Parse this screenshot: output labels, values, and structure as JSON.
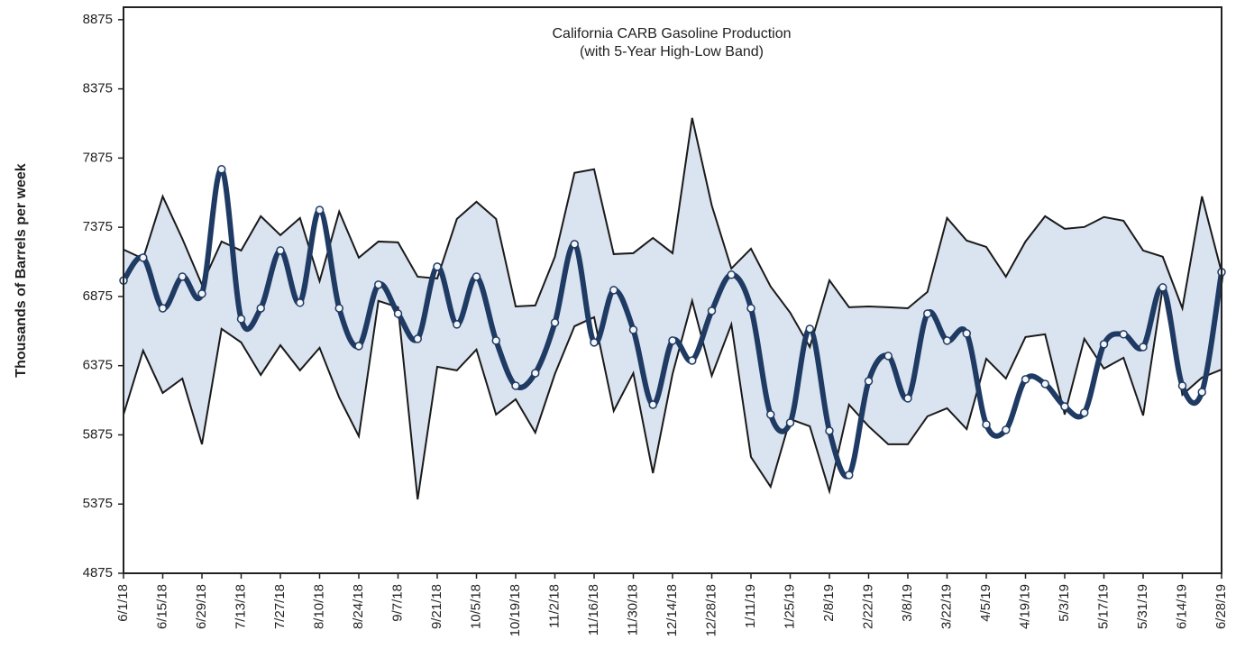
{
  "chart_data": {
    "type": "line",
    "title": "California CARB Gasoline Production",
    "subtitle": "(with 5-Year High-Low Band)",
    "y_label": "Thousands of Barrels per week",
    "categories": [
      "6/1/18",
      null,
      "6/15/18",
      null,
      "6/29/18",
      null,
      "7/13/18",
      null,
      "7/27/18",
      null,
      "8/10/18",
      null,
      "8/24/18",
      null,
      "9/7/18",
      null,
      "9/21/18",
      null,
      "10/5/18",
      null,
      "10/19/18",
      null,
      "11/2/18",
      null,
      "11/16/18",
      null,
      "11/30/18",
      null,
      "12/14/18",
      null,
      "12/28/18",
      null,
      "1/11/19",
      null,
      "1/25/19",
      null,
      "2/8/19",
      null,
      "2/22/19",
      null,
      "3/8/19",
      null,
      "3/22/19",
      null,
      "4/5/19",
      null,
      "4/19/19",
      null,
      "5/3/19",
      null,
      "5/17/19",
      null,
      "5/31/19",
      null,
      "6/14/19",
      null,
      "6/28/19"
    ],
    "series": [
      {
        "color": "#1f3b63",
        "values": [
          6990,
          7155,
          6790,
          7018,
          6895,
          7794,
          6712,
          6790,
          7207,
          6830,
          7500,
          6790,
          6517,
          6960,
          6751,
          6569,
          7090,
          6673,
          7018,
          6556,
          6230,
          6321,
          6686,
          7253,
          6543,
          6921,
          6634,
          6093,
          6556,
          6412,
          6771,
          7032,
          6790,
          6022,
          5963,
          6641,
          5904,
          5585,
          6263,
          6445,
          6139,
          6751,
          6556,
          6608,
          5950,
          5911,
          6276,
          6243,
          6080,
          6035,
          6530,
          6602,
          6510,
          6940,
          6230,
          6184,
          7051
        ]
      },
      {
        "color": "#1a1a1a",
        "values": [
          7214,
          7148,
          7598,
          7292,
          6960,
          7272,
          7207,
          7455,
          7318,
          7442,
          6986,
          7488,
          7155,
          7272,
          7266,
          7018,
          7005,
          7435,
          7559,
          7435,
          6803,
          6810,
          7162,
          7768,
          7794,
          7181,
          7188,
          7298,
          7188,
          8165,
          7533,
          7077,
          7220,
          6947,
          6758,
          6510,
          6992,
          6797,
          6803,
          6797,
          6790,
          6908,
          7442,
          7279,
          7233,
          7018,
          7272,
          7455,
          7364,
          7377,
          7449,
          7422,
          7207,
          7162,
          6790,
          7598,
          7051
        ]
      },
      {
        "color": "#1a1a1a",
        "values": [
          6022,
          6484,
          6178,
          6282,
          5807,
          6641,
          6543,
          6308,
          6523,
          6341,
          6504,
          6145,
          5865,
          6843,
          6797,
          5409,
          6367,
          6341,
          6491,
          6022,
          6132,
          5891,
          6315,
          6660,
          6725,
          6048,
          6321,
          5598,
          6315,
          6843,
          6302,
          6673,
          5715,
          5500,
          5989,
          5937,
          5468,
          6093,
          5937,
          5807,
          5807,
          6009,
          6067,
          5917,
          6425,
          6282,
          6582,
          6602,
          6022,
          6569,
          6354,
          6432,
          6015,
          6940,
          6165,
          6289,
          6347
        ]
      }
    ],
    "band_color": "#dae3f0",
    "ylim": [
      4875,
      8965
    ],
    "yticks": [
      4875,
      5375,
      5875,
      6375,
      6875,
      7375,
      7875,
      8375,
      8875
    ]
  }
}
